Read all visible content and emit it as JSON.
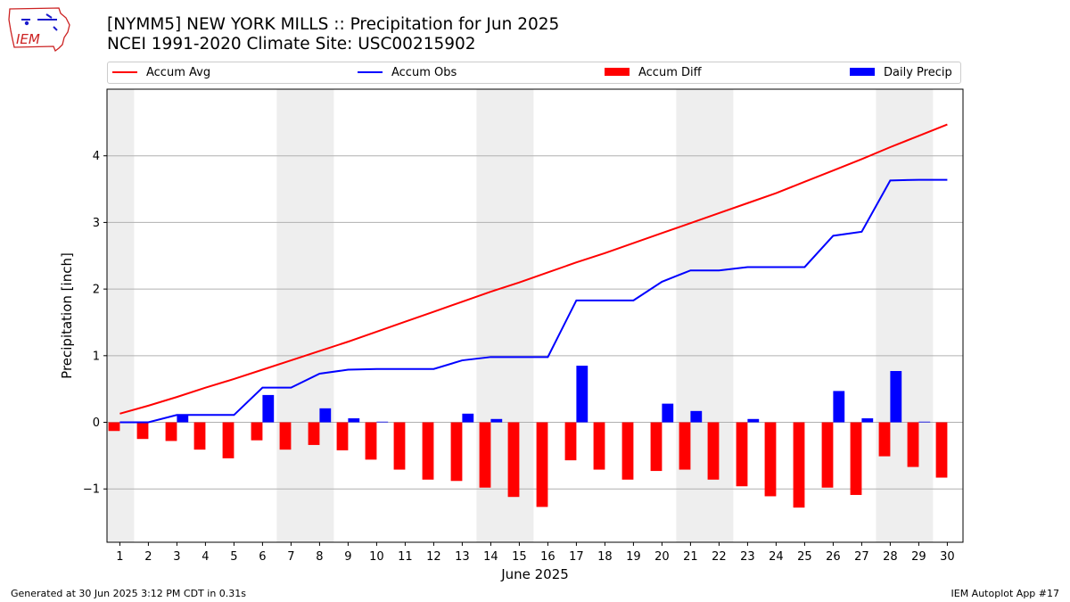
{
  "logo": {
    "text": "IEM"
  },
  "header": {
    "title": "[NYMM5] NEW YORK MILLS :: Precipitation for Jun 2025",
    "subtitle": "NCEI 1991-2020 Climate Site: USC00215902"
  },
  "legend": {
    "accum_avg": "Accum Avg",
    "accum_obs": "Accum Obs",
    "accum_diff": "Accum Diff",
    "daily_precip": "Daily Precip"
  },
  "footer": {
    "generated": "Generated at 30 Jun 2025 3:12 PM CDT in 0.31s",
    "app": "IEM Autoplot App #17"
  },
  "colors": {
    "accum_avg": "#ff0000",
    "accum_obs": "#0000ff",
    "accum_diff": "#ff0000",
    "daily_precip": "#0000ff",
    "weekend_shade": "#eeeeee",
    "grid": "#b0b0b0"
  },
  "chart_data": {
    "type": "bar",
    "title": "[NYMM5] NEW YORK MILLS :: Precipitation for Jun 2025",
    "subtitle": "NCEI 1991-2020 Climate Site: USC00215902",
    "xlabel": "June 2025",
    "ylabel": "Precipitation [inch]",
    "ylim": [
      -1.8,
      5.0
    ],
    "xlim": [
      0.55,
      30.55
    ],
    "yticks": [
      -1,
      0,
      1,
      2,
      3,
      4
    ],
    "ytick_labels": [
      "−1",
      "0",
      "1",
      "2",
      "3",
      "4"
    ],
    "grid": "horizontal",
    "legend_position": "top",
    "weekend_spans": [
      [
        0.5,
        1.5
      ],
      [
        6.5,
        8.5
      ],
      [
        13.5,
        15.5
      ],
      [
        20.5,
        22.5
      ],
      [
        27.5,
        29.5
      ]
    ],
    "categories": [
      "1",
      "2",
      "3",
      "4",
      "5",
      "6",
      "7",
      "8",
      "9",
      "10",
      "11",
      "12",
      "13",
      "14",
      "15",
      "16",
      "17",
      "18",
      "19",
      "20",
      "21",
      "22",
      "23",
      "24",
      "25",
      "26",
      "27",
      "28",
      "29",
      "30"
    ],
    "series": [
      {
        "name": "Accum Avg",
        "kind": "line",
        "values": [
          0.13,
          0.25,
          0.38,
          0.52,
          0.65,
          0.79,
          0.93,
          1.07,
          1.21,
          1.36,
          1.51,
          1.66,
          1.81,
          1.96,
          2.1,
          2.25,
          2.4,
          2.54,
          2.69,
          2.84,
          2.99,
          3.14,
          3.29,
          3.44,
          3.61,
          3.78,
          3.95,
          4.13,
          4.3,
          4.47
        ]
      },
      {
        "name": "Accum Obs",
        "kind": "line",
        "values": [
          0.0,
          0.0,
          0.11,
          0.11,
          0.11,
          0.52,
          0.52,
          0.73,
          0.79,
          0.8,
          0.8,
          0.8,
          0.93,
          0.98,
          0.98,
          0.98,
          1.83,
          1.83,
          1.83,
          2.11,
          2.28,
          2.28,
          2.33,
          2.33,
          2.33,
          2.8,
          2.86,
          3.63,
          3.64,
          3.64
        ]
      },
      {
        "name": "Accum Diff",
        "kind": "bar",
        "values": [
          -0.13,
          -0.25,
          -0.28,
          -0.41,
          -0.54,
          -0.27,
          -0.41,
          -0.34,
          -0.42,
          -0.56,
          -0.71,
          -0.86,
          -0.88,
          -0.98,
          -1.12,
          -1.27,
          -0.57,
          -0.71,
          -0.86,
          -0.73,
          -0.71,
          -0.86,
          -0.96,
          -1.11,
          -1.28,
          -0.98,
          -1.09,
          -0.51,
          -0.67,
          -0.83
        ]
      },
      {
        "name": "Daily Precip",
        "kind": "bar",
        "values": [
          0.0,
          0.0,
          0.11,
          0.0,
          0.0,
          0.41,
          0.0,
          0.21,
          0.06,
          0.01,
          0.0,
          0.0,
          0.13,
          0.05,
          0.0,
          0.0,
          0.85,
          0.0,
          0.0,
          0.28,
          0.17,
          0.0,
          0.05,
          0.0,
          0.0,
          0.47,
          0.06,
          0.77,
          0.01,
          0.0
        ]
      }
    ]
  }
}
